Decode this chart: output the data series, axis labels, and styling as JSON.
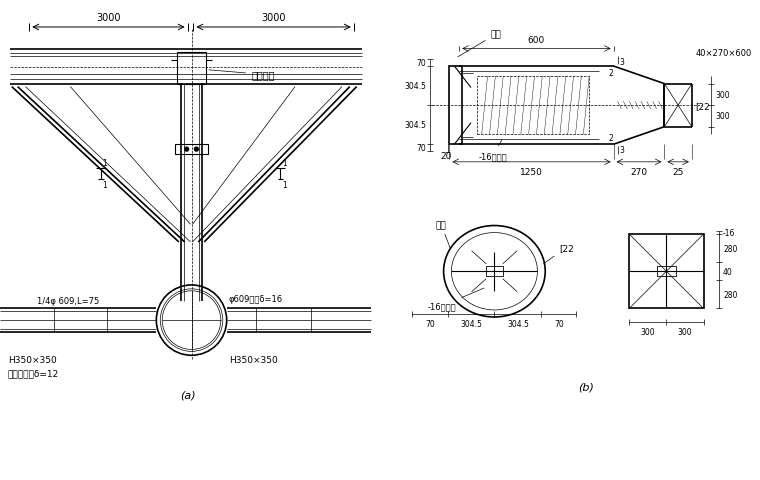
{
  "bg_color": "#ffffff",
  "line_color": "#000000",
  "fig_width": 7.6,
  "fig_height": 4.81,
  "labels": {
    "dim_3000_left": "3000",
    "dim_3000_right": "3000",
    "huoluo": "活络头子",
    "label_a": "(a)",
    "label_b": "(b)",
    "h350_left": "H350×350",
    "h350_right": "H350×350",
    "pipe": "φ609钓管δ=16",
    "quarter_pipe": "1/4φ 609,L=75",
    "guan_nei": "管内加劲板δ=12",
    "falan_top": "法兰",
    "falan_bottom": "法兰",
    "dim_600": "600",
    "dim_1250": "1250",
    "dim_270": "270",
    "dim_25": "25",
    "dim_20": "20",
    "dim_70_left": "70",
    "dim_304_5_left": "304.5",
    "dim_304_5_right": "304.5",
    "dim_3": "3",
    "dim_3b": "3",
    "dim_300_top": "300",
    "dim_300_bot": "300",
    "label_22": "[22",
    "label_22b": "[22",
    "label_40x270x600": "40×270×600",
    "label_16jiajin": "-16加劲板",
    "label_16jiajin2": "-16加劲板",
    "label_16jiajin3": "-16加劲板",
    "dim_70_top": "70",
    "dim_304_5a": "304.5",
    "dim_304_5b": "304.5",
    "dim_70_right": "70",
    "dim_280_top": "280",
    "dim_280_bot": "280",
    "dim_40": "40",
    "dim_16": "-16",
    "dim_300_left2": "300",
    "dim_300_right2": "300"
  }
}
